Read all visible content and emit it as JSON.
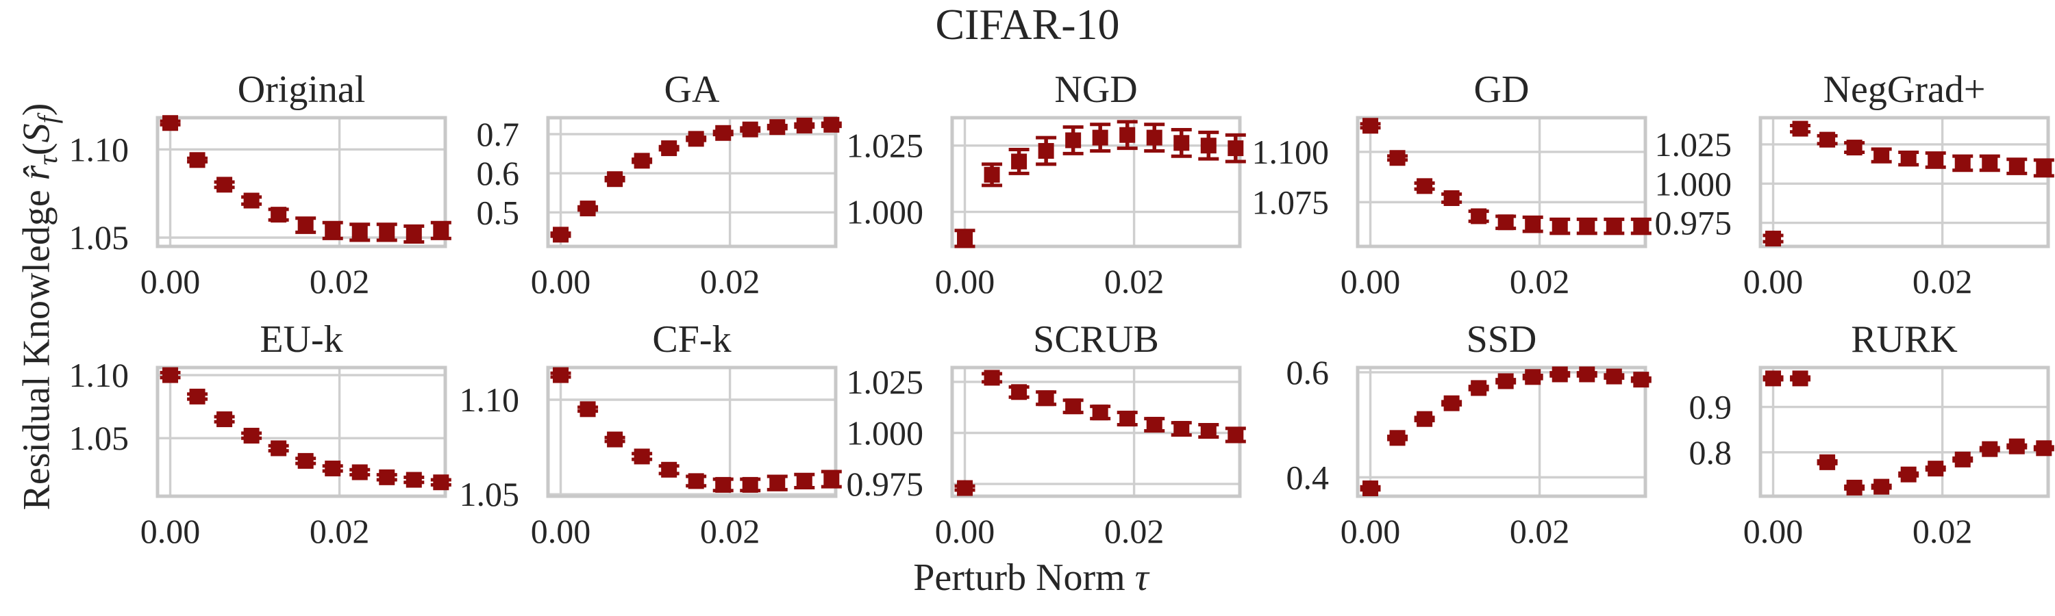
{
  "figure": {
    "title": "CIFAR-10",
    "xlabel_text": "Perturb Norm τ",
    "ylabel_text": "Residual Knowledge r̂τ(Sf)",
    "xlabel_segments": [
      {
        "t": "Perturb Norm ",
        "s": "plain"
      },
      {
        "t": "τ",
        "s": "italic"
      }
    ],
    "ylabel_segments": [
      {
        "t": "Residual Knowledge ",
        "s": "plain"
      },
      {
        "t": "r̂",
        "s": "italic"
      },
      {
        "t": "τ",
        "s": "italic-sub"
      },
      {
        "t": "(",
        "s": "plain"
      },
      {
        "t": "S",
        "s": "italic"
      },
      {
        "t": "f",
        "s": "italic-sub"
      },
      {
        "t": ")",
        "s": "plain"
      }
    ],
    "colors": {
      "marker": "#8e0b0b",
      "grid": "#cfcfcf",
      "border": "#c8c8c8",
      "text": "#262626",
      "background": "#ffffff"
    }
  },
  "chart_data": {
    "type": "scatter",
    "suptitle": "CIFAR-10",
    "xlabel": "Perturb Norm τ",
    "ylabel": "Residual Knowledge r̂τ(Sf)",
    "marker": "square",
    "marker_color": "#8e0b0b",
    "error_bars": true,
    "grid": true,
    "layout": "2 rows x 5 cols",
    "x": [
      0.0,
      0.0032,
      0.0064,
      0.0096,
      0.0128,
      0.016,
      0.0192,
      0.0224,
      0.0256,
      0.0288,
      0.032
    ],
    "xlim": [
      -0.0015,
      0.0325
    ],
    "xticks": [
      0.0,
      0.02
    ],
    "xtick_labels": [
      "0.00",
      "0.02"
    ],
    "subplots": [
      {
        "title": "Original",
        "y": [
          1.115,
          1.094,
          1.08,
          1.071,
          1.063,
          1.057,
          1.054,
          1.053,
          1.053,
          1.052,
          1.054
        ],
        "yerr": [
          0.001,
          0.001,
          0.0015,
          0.002,
          0.003,
          0.004,
          0.0045,
          0.0045,
          0.0045,
          0.0045,
          0.0045
        ],
        "ylim": [
          1.045,
          1.118
        ],
        "yticks": [
          1.05,
          1.1
        ],
        "ytick_labels": [
          "1.05",
          "1.10"
        ]
      },
      {
        "title": "GA",
        "y": [
          0.443,
          0.51,
          0.585,
          0.632,
          0.664,
          0.688,
          0.703,
          0.712,
          0.718,
          0.722,
          0.724
        ],
        "yerr": [
          0.004,
          0.004,
          0.004,
          0.004,
          0.004,
          0.004,
          0.004,
          0.004,
          0.004,
          0.004,
          0.004
        ],
        "ylim": [
          0.413,
          0.742
        ],
        "yticks": [
          0.5,
          0.6,
          0.7
        ],
        "ytick_labels": [
          "0.5",
          "0.6",
          "0.7"
        ]
      },
      {
        "title": "NGD",
        "y": [
          0.99,
          1.014,
          1.019,
          1.023,
          1.027,
          1.028,
          1.029,
          1.028,
          1.026,
          1.025,
          1.024
        ],
        "yerr": [
          0.003,
          0.004,
          0.0045,
          0.005,
          0.005,
          0.005,
          0.005,
          0.005,
          0.005,
          0.005,
          0.005
        ],
        "ylim": [
          0.987,
          1.0355
        ],
        "yticks": [
          1.0,
          1.025
        ],
        "ytick_labels": [
          "1.000",
          "1.025"
        ]
      },
      {
        "title": "GD",
        "y": [
          1.113,
          1.097,
          1.083,
          1.077,
          1.068,
          1.065,
          1.064,
          1.063,
          1.063,
          1.063,
          1.063
        ],
        "yerr": [
          0.001,
          0.001,
          0.0015,
          0.002,
          0.0025,
          0.003,
          0.0035,
          0.0035,
          0.0035,
          0.0035,
          0.0035
        ],
        "ylim": [
          1.053,
          1.117
        ],
        "yticks": [
          1.075,
          1.1
        ],
        "ytick_labels": [
          "1.075",
          "1.100"
        ]
      },
      {
        "title": "NegGrad+",
        "y": [
          0.965,
          1.035,
          1.028,
          1.023,
          1.018,
          1.016,
          1.015,
          1.013,
          1.013,
          1.011,
          1.01
        ],
        "yerr": [
          0.002,
          0.002,
          0.0025,
          0.003,
          0.004,
          0.004,
          0.0045,
          0.0045,
          0.0045,
          0.0045,
          0.005
        ],
        "ylim": [
          0.96,
          1.042
        ],
        "yticks": [
          0.975,
          1.0,
          1.025
        ],
        "ytick_labels": [
          "0.975",
          "1.000",
          "1.025"
        ]
      },
      {
        "title": "EU-k",
        "y": [
          1.1,
          1.083,
          1.065,
          1.052,
          1.042,
          1.032,
          1.026,
          1.023,
          1.019,
          1.017,
          1.015
        ],
        "yerr": [
          0.002,
          0.002,
          0.002,
          0.002,
          0.002,
          0.002,
          0.002,
          0.002,
          0.002,
          0.002,
          0.002
        ],
        "ylim": [
          1.004,
          1.106
        ],
        "yticks": [
          1.05,
          1.1
        ],
        "ytick_labels": [
          "1.05",
          "1.10"
        ]
      },
      {
        "title": "CF-k",
        "y": [
          1.113,
          1.095,
          1.079,
          1.07,
          1.063,
          1.057,
          1.055,
          1.055,
          1.056,
          1.057,
          1.058
        ],
        "yerr": [
          0.001,
          0.001,
          0.001,
          0.0015,
          0.002,
          0.0025,
          0.003,
          0.003,
          0.0035,
          0.0035,
          0.004
        ],
        "ylim": [
          1.049,
          1.117
        ],
        "yticks": [
          1.05,
          1.1
        ],
        "ytick_labels": [
          "1.05",
          "1.10"
        ]
      },
      {
        "title": "SCRUB",
        "y": [
          0.973,
          1.027,
          1.02,
          1.017,
          1.013,
          1.01,
          1.007,
          1.004,
          1.002,
          1.001,
          0.999
        ],
        "yerr": [
          0.001,
          0.002,
          0.0025,
          0.003,
          0.003,
          0.003,
          0.003,
          0.003,
          0.003,
          0.003,
          0.0032
        ],
        "ylim": [
          0.969,
          1.032
        ],
        "yticks": [
          0.975,
          1.0,
          1.025
        ],
        "ytick_labels": [
          "0.975",
          "1.000",
          "1.025"
        ]
      },
      {
        "title": "SSD",
        "y": [
          0.379,
          0.475,
          0.511,
          0.541,
          0.57,
          0.583,
          0.591,
          0.596,
          0.596,
          0.592,
          0.586
        ],
        "yerr": [
          0.003,
          0.003,
          0.003,
          0.003,
          0.003,
          0.003,
          0.003,
          0.003,
          0.003,
          0.003,
          0.003
        ],
        "ylim": [
          0.364,
          0.609
        ],
        "yticks": [
          0.4,
          0.6
        ],
        "ytick_labels": [
          "0.4",
          "0.6"
        ]
      },
      {
        "title": "RURK",
        "y": [
          0.963,
          0.963,
          0.778,
          0.722,
          0.724,
          0.751,
          0.764,
          0.784,
          0.807,
          0.813,
          0.809
        ],
        "yerr": [
          0.003,
          0.003,
          0.003,
          0.003,
          0.003,
          0.003,
          0.003,
          0.003,
          0.003,
          0.003,
          0.003
        ],
        "ylim": [
          0.703,
          0.987
        ],
        "yticks": [
          0.8,
          0.9
        ],
        "ytick_labels": [
          "0.8",
          "0.9"
        ]
      }
    ]
  }
}
